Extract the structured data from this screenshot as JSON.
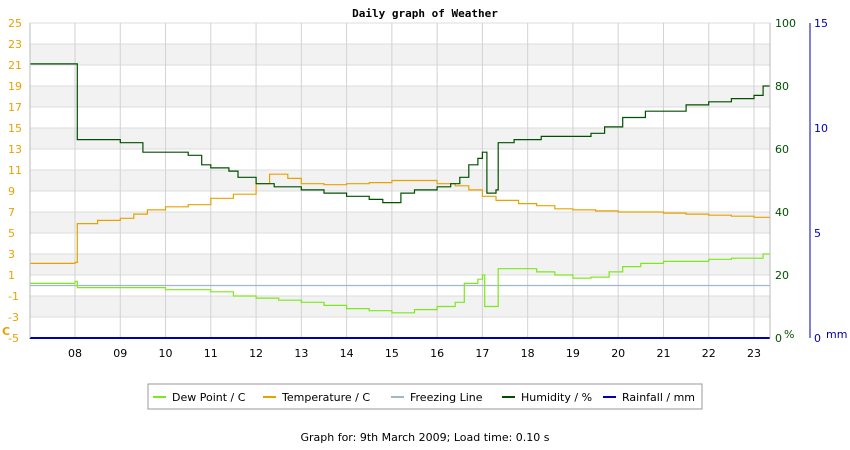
{
  "chart_data": {
    "type": "line",
    "title": "Daily graph of Weather",
    "x_ticks": [
      "08",
      "09",
      "10",
      "11",
      "12",
      "13",
      "14",
      "15",
      "16",
      "17",
      "18",
      "19",
      "20",
      "21",
      "22",
      "23"
    ],
    "x_range": [
      7.0,
      23.35
    ],
    "left_axis": {
      "unit": "C",
      "range": [
        -5,
        25
      ],
      "ticks": [
        25,
        23,
        21,
        19,
        17,
        15,
        13,
        11,
        9,
        7,
        5,
        3,
        1,
        -1,
        -3,
        -5
      ],
      "color": "#e8a200"
    },
    "right_axis_1": {
      "unit": "%",
      "range": [
        0,
        100
      ],
      "ticks": [
        100,
        80,
        60,
        40,
        20,
        0
      ],
      "color": "#005000"
    },
    "right_axis_2": {
      "unit": "mm",
      "range": [
        0,
        15
      ],
      "ticks": [
        15,
        10,
        5,
        0
      ],
      "color": "#0000b0"
    },
    "grid": true,
    "legend_position": "bottom",
    "series": [
      {
        "name": "Dew Point / C",
        "axis": "left",
        "color": "#7de81c",
        "points": [
          [
            7.0,
            0.2
          ],
          [
            8.0,
            0.4
          ],
          [
            8.05,
            -0.2
          ],
          [
            9.0,
            -0.2
          ],
          [
            10.0,
            -0.4
          ],
          [
            11.0,
            -0.6
          ],
          [
            11.5,
            -1.0
          ],
          [
            12.0,
            -1.2
          ],
          [
            12.5,
            -1.4
          ],
          [
            13.0,
            -1.6
          ],
          [
            13.5,
            -1.9
          ],
          [
            14.0,
            -2.2
          ],
          [
            14.5,
            -2.4
          ],
          [
            15.0,
            -2.6
          ],
          [
            15.5,
            -2.3
          ],
          [
            16.0,
            -2.0
          ],
          [
            16.4,
            -1.6
          ],
          [
            16.6,
            0.2
          ],
          [
            16.9,
            0.6
          ],
          [
            17.0,
            1.0
          ],
          [
            17.05,
            -2.0
          ],
          [
            17.3,
            -2.0
          ],
          [
            17.35,
            1.6
          ],
          [
            17.8,
            1.6
          ],
          [
            18.2,
            1.3
          ],
          [
            18.6,
            1.0
          ],
          [
            19.0,
            0.7
          ],
          [
            19.4,
            0.8
          ],
          [
            19.8,
            1.3
          ],
          [
            20.1,
            1.8
          ],
          [
            20.5,
            2.1
          ],
          [
            21.0,
            2.3
          ],
          [
            21.5,
            2.3
          ],
          [
            22.0,
            2.5
          ],
          [
            22.5,
            2.6
          ],
          [
            23.0,
            2.6
          ],
          [
            23.2,
            3.0
          ],
          [
            23.35,
            3.0
          ]
        ]
      },
      {
        "name": "Temperature / C",
        "axis": "left",
        "color": "#e8a200",
        "points": [
          [
            7.0,
            2.1
          ],
          [
            8.0,
            2.2
          ],
          [
            8.05,
            5.9
          ],
          [
            8.5,
            6.2
          ],
          [
            9.0,
            6.4
          ],
          [
            9.3,
            6.8
          ],
          [
            9.6,
            7.2
          ],
          [
            10.0,
            7.5
          ],
          [
            10.5,
            7.7
          ],
          [
            11.0,
            8.3
          ],
          [
            11.5,
            8.7
          ],
          [
            12.0,
            9.7
          ],
          [
            12.3,
            10.6
          ],
          [
            12.7,
            10.2
          ],
          [
            13.0,
            9.7
          ],
          [
            13.5,
            9.6
          ],
          [
            14.0,
            9.7
          ],
          [
            14.5,
            9.8
          ],
          [
            15.0,
            10.0
          ],
          [
            15.5,
            10.0
          ],
          [
            16.0,
            9.7
          ],
          [
            16.4,
            9.5
          ],
          [
            16.7,
            9.1
          ],
          [
            17.0,
            8.5
          ],
          [
            17.3,
            8.1
          ],
          [
            17.8,
            7.8
          ],
          [
            18.2,
            7.6
          ],
          [
            18.6,
            7.3
          ],
          [
            19.0,
            7.2
          ],
          [
            19.5,
            7.1
          ],
          [
            20.0,
            7.0
          ],
          [
            20.5,
            7.0
          ],
          [
            21.0,
            6.9
          ],
          [
            21.5,
            6.8
          ],
          [
            22.0,
            6.7
          ],
          [
            22.5,
            6.6
          ],
          [
            23.0,
            6.5
          ],
          [
            23.35,
            6.4
          ]
        ]
      },
      {
        "name": "Freezing Line",
        "axis": "left",
        "color": "#a0b8c8",
        "points": [
          [
            7.0,
            0
          ],
          [
            23.35,
            0
          ]
        ]
      },
      {
        "name": "Humidity / %",
        "axis": "right_axis_1",
        "color": "#005000",
        "points": [
          [
            7.0,
            87
          ],
          [
            8.0,
            87
          ],
          [
            8.05,
            63
          ],
          [
            8.5,
            63
          ],
          [
            9.0,
            62
          ],
          [
            9.4,
            62
          ],
          [
            9.5,
            59
          ],
          [
            10.0,
            59
          ],
          [
            10.5,
            58
          ],
          [
            10.8,
            55
          ],
          [
            11.0,
            54
          ],
          [
            11.4,
            53
          ],
          [
            11.6,
            51
          ],
          [
            12.0,
            49
          ],
          [
            12.4,
            48
          ],
          [
            13.0,
            47
          ],
          [
            13.5,
            46
          ],
          [
            14.0,
            45
          ],
          [
            14.5,
            44
          ],
          [
            14.8,
            43
          ],
          [
            15.0,
            43
          ],
          [
            15.2,
            46
          ],
          [
            15.5,
            47
          ],
          [
            16.0,
            48
          ],
          [
            16.3,
            49
          ],
          [
            16.5,
            51
          ],
          [
            16.7,
            55
          ],
          [
            16.9,
            57
          ],
          [
            17.0,
            59
          ],
          [
            17.1,
            46
          ],
          [
            17.3,
            47
          ],
          [
            17.35,
            62
          ],
          [
            17.7,
            63
          ],
          [
            18.0,
            63
          ],
          [
            18.3,
            64
          ],
          [
            18.8,
            64
          ],
          [
            19.0,
            64
          ],
          [
            19.4,
            65
          ],
          [
            19.7,
            67
          ],
          [
            20.1,
            70
          ],
          [
            20.6,
            72
          ],
          [
            21.0,
            72
          ],
          [
            21.5,
            74
          ],
          [
            22.0,
            75
          ],
          [
            22.5,
            76
          ],
          [
            23.0,
            77
          ],
          [
            23.2,
            80
          ],
          [
            23.35,
            80
          ]
        ]
      },
      {
        "name": "Rainfall / mm",
        "axis": "right_axis_2",
        "color": "#0000b0",
        "points": [
          [
            7.0,
            0
          ],
          [
            23.35,
            0
          ]
        ]
      }
    ]
  },
  "footer": "Graph for: 9th March 2009; Load time: 0.10 s"
}
